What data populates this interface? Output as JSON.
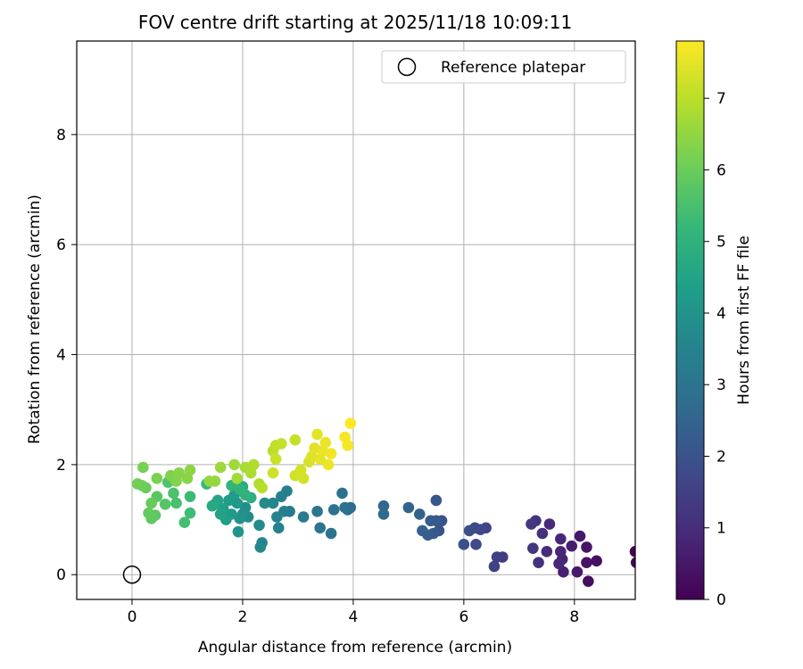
{
  "chart_data": {
    "type": "scatter",
    "title": "FOV centre drift starting at 2025/11/18 10:09:11",
    "xlabel": "Angular distance from reference (arcmin)",
    "ylabel": "Rotation from reference (arcmin)",
    "xlim": [
      -1,
      9.1
    ],
    "ylim": [
      -0.45,
      9.7
    ],
    "xticks": [
      0,
      2,
      4,
      6,
      8
    ],
    "yticks": [
      0,
      2,
      4,
      6,
      8
    ],
    "grid": true,
    "legend": {
      "placement": "top-right",
      "entries": [
        "Reference platepar"
      ]
    },
    "reference_point": {
      "x": 0,
      "y": 0,
      "label": "Reference platepar"
    },
    "colorbar": {
      "label": "Hours from first FF file",
      "colormap": "viridis",
      "range": [
        0,
        7.8
      ],
      "ticks": [
        0,
        1,
        2,
        3,
        4,
        5,
        6,
        7
      ]
    },
    "colormap_stops": [
      "#440154",
      "#482878",
      "#3e4989",
      "#31688e",
      "#26828e",
      "#1f9e89",
      "#35b779",
      "#6ece58",
      "#b5de2b",
      "#fde725"
    ],
    "points": [
      [
        9.1,
        0.42,
        0.05
      ],
      [
        9.12,
        0.22,
        0.1
      ],
      [
        8.25,
        -0.12,
        0.3
      ],
      [
        8.4,
        0.25,
        0.35
      ],
      [
        8.22,
        0.22,
        0.4
      ],
      [
        8.22,
        0.5,
        0.45
      ],
      [
        8.1,
        0.7,
        0.5
      ],
      [
        8.05,
        0.05,
        0.55
      ],
      [
        7.95,
        0.52,
        0.65
      ],
      [
        7.8,
        0.05,
        0.7
      ],
      [
        7.78,
        0.28,
        0.75
      ],
      [
        7.75,
        0.42,
        0.8
      ],
      [
        7.75,
        0.65,
        0.85
      ],
      [
        7.72,
        0.2,
        0.9
      ],
      [
        7.55,
        0.92,
        0.95
      ],
      [
        7.5,
        0.42,
        1.0
      ],
      [
        7.42,
        0.75,
        1.05
      ],
      [
        7.35,
        0.22,
        1.1
      ],
      [
        7.3,
        0.98,
        1.15
      ],
      [
        7.25,
        0.48,
        1.2
      ],
      [
        7.22,
        0.92,
        1.3
      ],
      [
        6.7,
        0.32,
        1.4
      ],
      [
        6.6,
        0.32,
        1.5
      ],
      [
        6.55,
        0.15,
        1.55
      ],
      [
        6.4,
        0.85,
        1.6
      ],
      [
        6.3,
        0.82,
        1.7
      ],
      [
        6.22,
        0.55,
        1.75
      ],
      [
        6.2,
        0.85,
        1.8
      ],
      [
        6.1,
        0.8,
        1.85
      ],
      [
        6.0,
        0.55,
        1.9
      ],
      [
        5.6,
        0.98,
        2.0
      ],
      [
        5.55,
        0.8,
        2.05
      ],
      [
        5.5,
        1.35,
        2.1
      ],
      [
        5.45,
        0.75,
        2.15
      ],
      [
        5.5,
        0.98,
        2.2
      ],
      [
        5.4,
        0.98,
        2.25
      ],
      [
        5.35,
        0.72,
        2.3
      ],
      [
        5.25,
        0.8,
        2.4
      ],
      [
        5.2,
        1.1,
        2.45
      ],
      [
        5.0,
        1.22,
        2.5
      ],
      [
        4.55,
        1.25,
        2.6
      ],
      [
        4.55,
        1.1,
        2.65
      ],
      [
        3.95,
        1.22,
        2.75
      ],
      [
        3.9,
        1.18,
        2.8
      ],
      [
        3.85,
        1.22,
        2.85
      ],
      [
        3.8,
        1.48,
        2.9
      ],
      [
        3.65,
        1.18,
        2.95
      ],
      [
        3.6,
        0.75,
        3.0
      ],
      [
        3.4,
        0.85,
        3.05
      ],
      [
        3.35,
        1.15,
        3.1
      ],
      [
        3.1,
        1.05,
        3.15
      ],
      [
        2.85,
        1.15,
        3.2
      ],
      [
        2.8,
        1.52,
        3.3
      ],
      [
        2.75,
        1.15,
        3.35
      ],
      [
        2.7,
        1.42,
        3.4
      ],
      [
        2.65,
        0.85,
        3.45
      ],
      [
        2.62,
        1.05,
        3.5
      ],
      [
        2.55,
        1.3,
        3.55
      ],
      [
        2.35,
        0.58,
        3.6
      ],
      [
        2.32,
        0.5,
        3.65
      ],
      [
        2.3,
        0.9,
        3.7
      ],
      [
        2.4,
        1.3,
        3.75
      ],
      [
        2.1,
        1.05,
        3.8
      ],
      [
        2.05,
        1.22,
        3.85
      ],
      [
        2.0,
        1.1,
        3.9
      ],
      [
        1.95,
        1.02,
        4.0
      ],
      [
        1.92,
        0.78,
        4.05
      ],
      [
        1.9,
        1.3,
        4.1
      ],
      [
        1.85,
        1.45,
        4.2
      ],
      [
        1.8,
        1.1,
        4.25
      ],
      [
        1.75,
        1.35,
        4.3
      ],
      [
        1.7,
        1.0,
        4.35
      ],
      [
        1.65,
        1.2,
        4.4
      ],
      [
        1.6,
        1.1,
        4.5
      ],
      [
        1.55,
        1.35,
        4.55
      ],
      [
        1.5,
        1.28,
        4.6
      ],
      [
        1.45,
        1.25,
        4.7
      ],
      [
        2.0,
        1.6,
        4.8
      ],
      [
        2.15,
        1.4,
        4.9
      ],
      [
        2.05,
        1.45,
        5.0
      ],
      [
        1.95,
        1.55,
        5.05
      ],
      [
        1.8,
        1.62,
        5.1
      ],
      [
        1.35,
        1.65,
        5.2
      ],
      [
        1.05,
        1.42,
        5.3
      ],
      [
        1.05,
        1.12,
        5.35
      ],
      [
        0.95,
        0.95,
        5.45
      ],
      [
        0.8,
        1.3,
        5.5
      ],
      [
        0.75,
        1.48,
        5.55
      ],
      [
        0.65,
        1.68,
        5.6
      ],
      [
        0.6,
        1.28,
        5.7
      ],
      [
        0.45,
        1.42,
        5.75
      ],
      [
        0.42,
        1.08,
        5.8
      ],
      [
        0.35,
        1.02,
        5.85
      ],
      [
        0.3,
        1.12,
        5.9
      ],
      [
        0.35,
        1.3,
        5.95
      ],
      [
        0.25,
        1.58,
        6.0
      ],
      [
        0.18,
        1.62,
        6.05
      ],
      [
        0.1,
        1.65,
        6.1
      ],
      [
        0.2,
        1.95,
        6.15
      ],
      [
        0.45,
        1.75,
        6.2
      ],
      [
        0.7,
        1.8,
        6.25
      ],
      [
        0.8,
        1.7,
        6.3
      ],
      [
        0.85,
        1.85,
        6.35
      ],
      [
        1.0,
        1.75,
        6.4
      ],
      [
        1.05,
        1.9,
        6.45
      ],
      [
        1.4,
        1.7,
        6.5
      ],
      [
        1.5,
        1.7,
        6.55
      ],
      [
        1.6,
        1.95,
        6.6
      ],
      [
        1.85,
        2.0,
        6.65
      ],
      [
        1.9,
        1.75,
        6.7
      ],
      [
        2.05,
        1.95,
        6.75
      ],
      [
        2.15,
        1.85,
        6.8
      ],
      [
        2.2,
        2.0,
        6.85
      ],
      [
        2.3,
        1.65,
        6.9
      ],
      [
        2.35,
        1.58,
        6.95
      ],
      [
        2.55,
        2.25,
        7.0
      ],
      [
        2.6,
        2.35,
        7.05
      ],
      [
        2.7,
        2.38,
        7.1
      ],
      [
        2.95,
        2.45,
        7.15
      ],
      [
        2.6,
        2.1,
        7.2
      ],
      [
        2.55,
        1.85,
        7.22
      ],
      [
        2.95,
        1.8,
        7.25
      ],
      [
        3.1,
        1.75,
        7.28
      ],
      [
        3.05,
        1.9,
        7.3
      ],
      [
        3.2,
        2.05,
        7.35
      ],
      [
        3.25,
        2.15,
        7.4
      ],
      [
        3.3,
        2.3,
        7.45
      ],
      [
        3.35,
        2.55,
        7.5
      ],
      [
        3.4,
        2.1,
        7.52
      ],
      [
        3.45,
        2.25,
        7.55
      ],
      [
        3.5,
        2.4,
        7.58
      ],
      [
        3.55,
        2.0,
        7.62
      ],
      [
        3.6,
        2.2,
        7.65
      ],
      [
        3.85,
        2.5,
        7.7
      ],
      [
        3.9,
        2.35,
        7.73
      ],
      [
        3.95,
        2.75,
        7.8
      ]
    ]
  }
}
